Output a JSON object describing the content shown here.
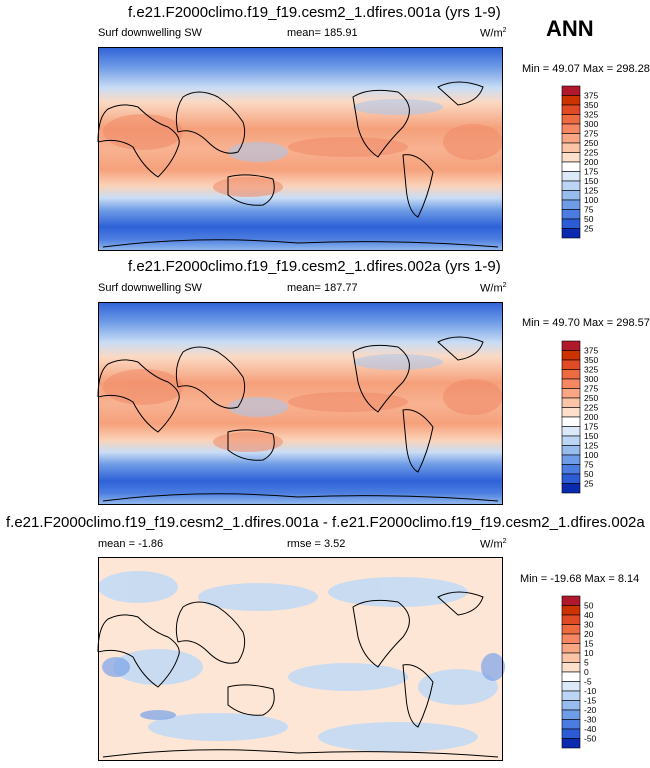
{
  "season": "ANN",
  "panels": [
    {
      "title": "f.e21.F2000climo.f19_f19.cesm2_1.dfires.001a (yrs 1-9)",
      "left_label": "Surf downwelling SW",
      "mean_label": "mean=",
      "mean_value": "185.91",
      "units_base": "W/m",
      "units_sup": "2",
      "min_label": "Min =",
      "min_value": "49.07",
      "max_label": "Max =",
      "max_value": "298.28"
    },
    {
      "title": "f.e21.F2000climo.f19_f19.cesm2_1.dfires.002a (yrs 1-9)",
      "left_label": "Surf downwelling SW",
      "mean_label": "mean=",
      "mean_value": "187.77",
      "units_base": "W/m",
      "units_sup": "2",
      "min_label": "Min =",
      "min_value": "49.70",
      "max_label": "Max =",
      "max_value": "298.57"
    },
    {
      "title": "f.e21.F2000climo.f19_f19.cesm2_1.dfires.001a - f.e21.F2000climo.f19_f19.cesm2_1.dfires.002a",
      "left_label": "mean =",
      "mean_value": "-1.86",
      "rmse_label": "rmse =",
      "rmse_value": "3.52",
      "units_base": "W/m",
      "units_sup": "2",
      "min_label": "Min =",
      "min_value": "-19.68",
      "max_label": "Max =",
      "max_value": "8.14"
    }
  ],
  "chart_data": [
    {
      "type": "heatmap",
      "title": "f.e21.F2000climo.f19_f19.cesm2_1.dfires.001a (yrs 1-9)",
      "variable": "Surf downwelling SW",
      "units": "W/m2",
      "mean": 185.91,
      "min": 49.07,
      "max": 298.28,
      "colorbar_levels": [
        375,
        350,
        325,
        300,
        275,
        250,
        225,
        200,
        175,
        150,
        125,
        100,
        75,
        50,
        25
      ],
      "colorbar_colors": [
        "#b2182b",
        "#cc3300",
        "#e04a24",
        "#ee6a40",
        "#f58862",
        "#f8a684",
        "#fbc4a6",
        "#fde0cc",
        "#ffffff",
        "#dbe9f8",
        "#bcd5f4",
        "#97bcee",
        "#6e9ce6",
        "#4b7de0",
        "#2b5cd6",
        "#0a2bb0"
      ]
    },
    {
      "type": "heatmap",
      "title": "f.e21.F2000climo.f19_f19.cesm2_1.dfires.002a (yrs 1-9)",
      "variable": "Surf downwelling SW",
      "units": "W/m2",
      "mean": 187.77,
      "min": 49.7,
      "max": 298.57,
      "colorbar_levels": [
        375,
        350,
        325,
        300,
        275,
        250,
        225,
        200,
        175,
        150,
        125,
        100,
        75,
        50,
        25
      ],
      "colorbar_colors": [
        "#b2182b",
        "#cc3300",
        "#e04a24",
        "#ee6a40",
        "#f58862",
        "#f8a684",
        "#fbc4a6",
        "#fde0cc",
        "#ffffff",
        "#dbe9f8",
        "#bcd5f4",
        "#97bcee",
        "#6e9ce6",
        "#4b7de0",
        "#2b5cd6",
        "#0a2bb0"
      ]
    },
    {
      "type": "heatmap",
      "title": "f.e21.F2000climo.f19_f19.cesm2_1.dfires.001a - f.e21.F2000climo.f19_f19.cesm2_1.dfires.002a",
      "units": "W/m2",
      "mean": -1.86,
      "rmse": 3.52,
      "min": -19.68,
      "max": 8.14,
      "colorbar_levels": [
        50,
        40,
        30,
        20,
        15,
        10,
        5,
        0,
        -5,
        -10,
        -15,
        -20,
        -30,
        -40,
        -50
      ],
      "colorbar_colors": [
        "#b2182b",
        "#cc3300",
        "#e04a24",
        "#ee6a40",
        "#f58862",
        "#f8a684",
        "#fbc4a6",
        "#fde0cc",
        "#ffffff",
        "#dbe9f8",
        "#bcd5f4",
        "#97bcee",
        "#6e9ce6",
        "#4b7de0",
        "#2b5cd6",
        "#0a2bb0"
      ]
    }
  ]
}
